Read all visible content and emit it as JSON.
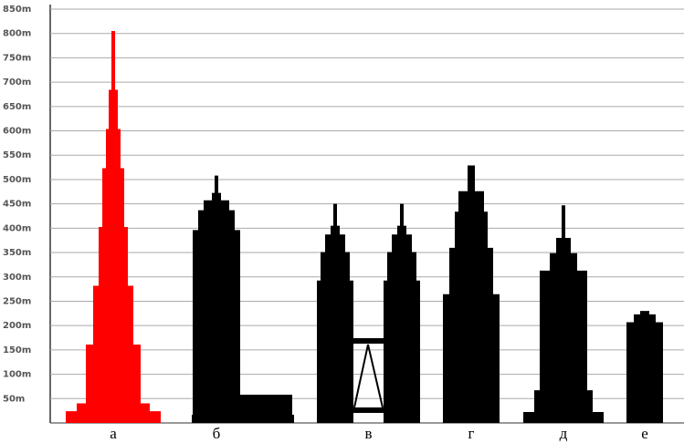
{
  "chart_data": {
    "type": "bar",
    "categories": [
      "а",
      "б",
      "в",
      "г",
      "д",
      "е"
    ],
    "values": [
      805,
      508,
      450,
      529,
      447,
      230
    ],
    "colors": [
      "#ff0000",
      "#000000",
      "#000000",
      "#000000",
      "#000000",
      "#000000"
    ],
    "ylim": [
      0,
      850
    ],
    "yticks": [
      {
        "value": 50,
        "label": "50m"
      },
      {
        "value": 100,
        "label": "100m"
      },
      {
        "value": 150,
        "label": "150m"
      },
      {
        "value": 200,
        "label": "200m"
      },
      {
        "value": 250,
        "label": "250m"
      },
      {
        "value": 300,
        "label": "300m"
      },
      {
        "value": 350,
        "label": "350m"
      },
      {
        "value": 400,
        "label": "400m"
      },
      {
        "value": 450,
        "label": "450m"
      },
      {
        "value": 500,
        "label": "500m"
      },
      {
        "value": 550,
        "label": "550m"
      },
      {
        "value": 600,
        "label": "600m"
      },
      {
        "value": 650,
        "label": "650m"
      },
      {
        "value": 700,
        "label": "700m"
      },
      {
        "value": 750,
        "label": "750m"
      },
      {
        "value": 800,
        "label": "800m"
      },
      {
        "value": 850,
        "label": "850m"
      }
    ],
    "grid": true
  }
}
